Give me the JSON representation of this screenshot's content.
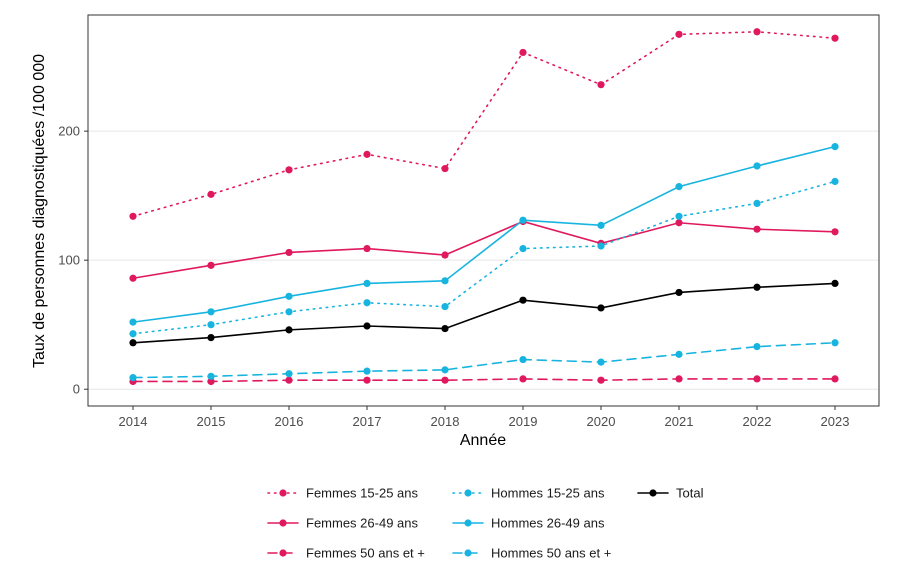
{
  "chart_data": {
    "type": "line",
    "title": "",
    "xlabel": "Année",
    "ylabel": "Taux de personnes diagnostiquées /100 000",
    "x": [
      2014,
      2015,
      2016,
      2017,
      2018,
      2019,
      2020,
      2021,
      2022,
      2023
    ],
    "ylim": [
      -13,
      290
    ],
    "yticks": [
      0,
      100,
      200
    ],
    "grid": true,
    "legend_position": "bottom",
    "series": [
      {
        "name": "Femmes 15-25 ans",
        "color": "#e0185e",
        "dash": "dotted",
        "values": [
          134,
          151,
          170,
          182,
          171,
          261,
          236,
          275,
          277,
          272
        ]
      },
      {
        "name": "Femmes 26-49 ans",
        "color": "#e0185e",
        "dash": "solid",
        "values": [
          86,
          96,
          106,
          109,
          104,
          130,
          113,
          129,
          124,
          122
        ]
      },
      {
        "name": "Femmes 50 ans et +",
        "color": "#e0185e",
        "dash": "dashed",
        "values": [
          6,
          6,
          7,
          7,
          7,
          8,
          7,
          8,
          8,
          8
        ]
      },
      {
        "name": "Hommes 15-25 ans",
        "color": "#18b4e0",
        "dash": "dotted",
        "values": [
          43,
          50,
          60,
          67,
          64,
          109,
          111,
          134,
          144,
          161
        ]
      },
      {
        "name": "Hommes 26-49 ans",
        "color": "#18b4e0",
        "dash": "solid",
        "values": [
          52,
          60,
          72,
          82,
          84,
          131,
          127,
          157,
          173,
          188
        ]
      },
      {
        "name": "Hommes 50 ans et +",
        "color": "#18b4e0",
        "dash": "dashed",
        "values": [
          9,
          10,
          12,
          14,
          15,
          23,
          21,
          27,
          33,
          36
        ]
      },
      {
        "name": "Total",
        "color": "#000000",
        "dash": "solid",
        "values": [
          36,
          40,
          46,
          49,
          47,
          69,
          63,
          75,
          79,
          82
        ]
      }
    ],
    "legend_layout": [
      [
        "Femmes 15-25 ans",
        "Hommes 15-25 ans",
        "Total"
      ],
      [
        "Femmes 26-49 ans",
        "Hommes 26-49 ans"
      ],
      [
        "Femmes 50 ans et +",
        "Hommes 50 ans et +"
      ]
    ]
  }
}
